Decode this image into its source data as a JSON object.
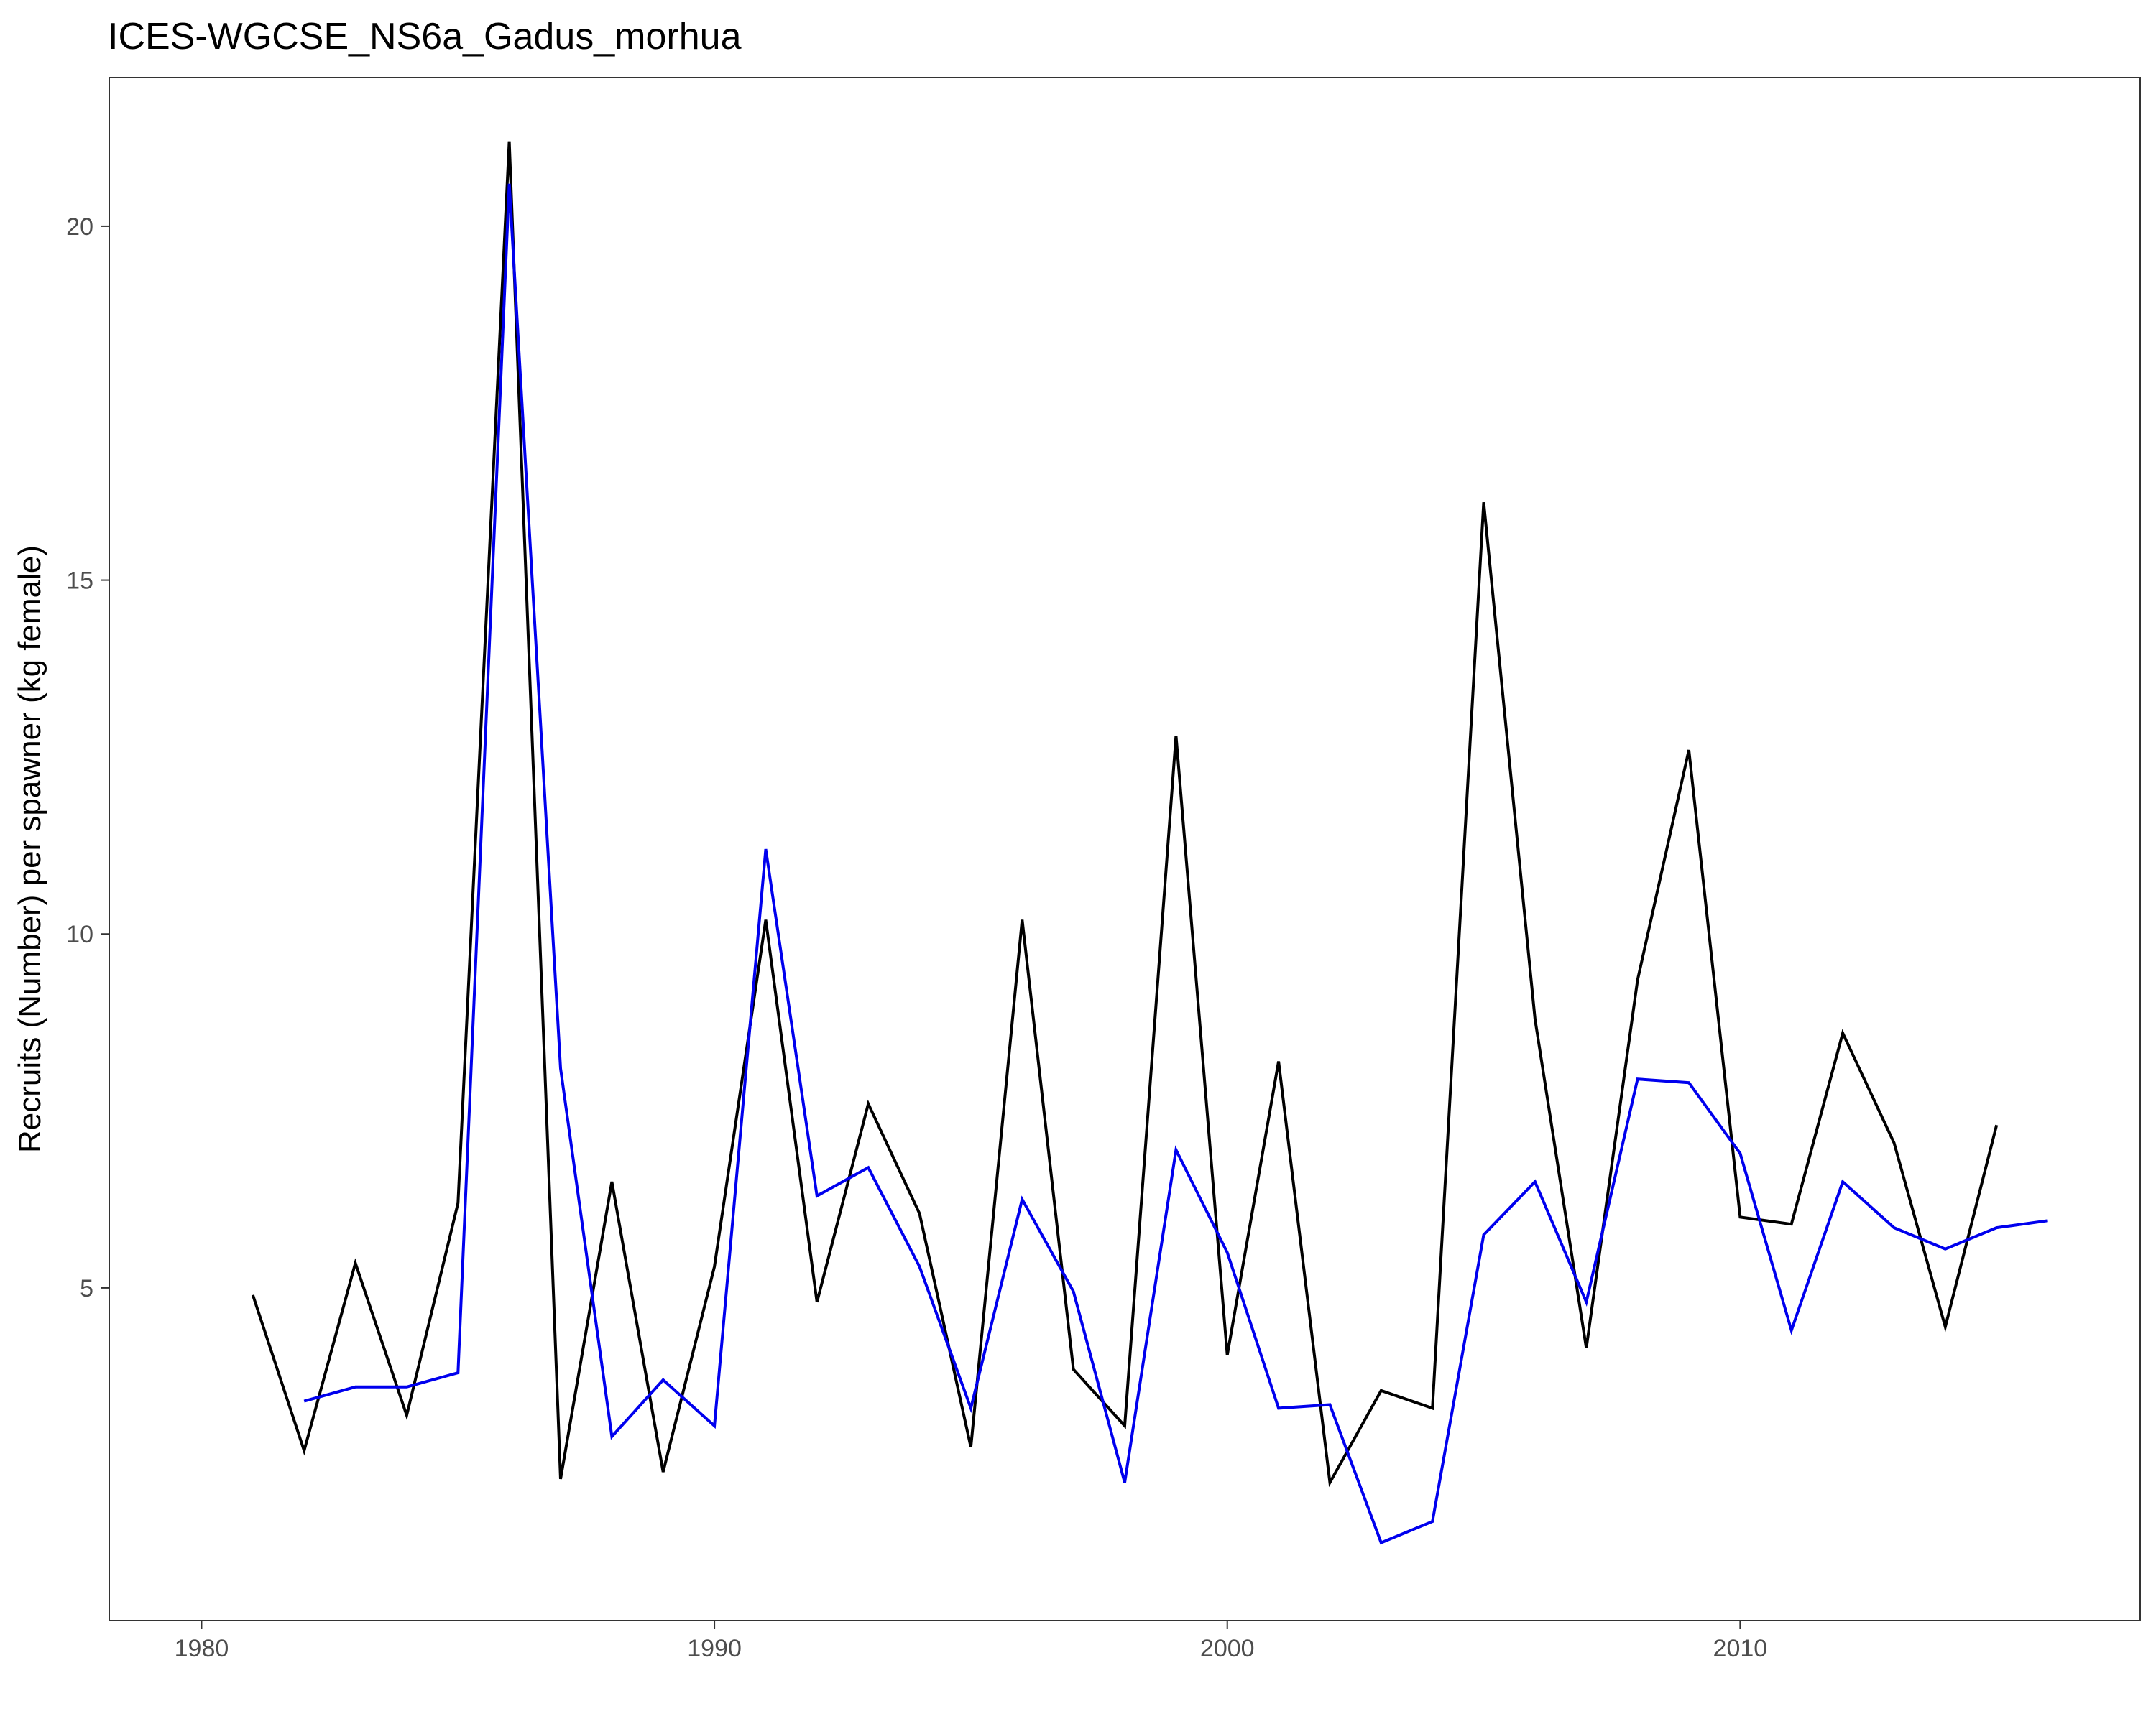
{
  "chart_data": {
    "type": "line",
    "title": "ICES-WGCSE_NS6a_Gadus_morhua",
    "xlabel": "",
    "ylabel": "Recruits (Number) per spawner (kg female)",
    "xlim": [
      1978.2,
      2017.8
    ],
    "ylim": [
      0.3,
      22.1
    ],
    "x_ticks": [
      1980,
      1990,
      2000,
      2010
    ],
    "x_tick_labels": [
      "1980",
      "1990",
      "2000",
      "2010"
    ],
    "y_ticks": [
      5,
      10,
      15,
      20
    ],
    "y_tick_labels": [
      "5",
      "10",
      "15",
      "20"
    ],
    "grid": false,
    "legend": "none",
    "series": [
      {
        "color": "#000000",
        "x": [
          1981,
          1982,
          1983,
          1984,
          1985,
          1986,
          1987,
          1988,
          1989,
          1990,
          1991,
          1992,
          1993,
          1994,
          1995,
          1996,
          1997,
          1998,
          1999,
          2000,
          2001,
          2002,
          2003,
          2004,
          2005,
          2006,
          2007,
          2008,
          2009,
          2010,
          2011,
          2012,
          2013,
          2014,
          2015
        ],
        "values": [
          4.9,
          2.7,
          5.35,
          3.2,
          6.2,
          21.2,
          2.3,
          6.5,
          2.4,
          5.3,
          10.2,
          4.8,
          7.6,
          6.05,
          2.75,
          10.2,
          3.85,
          3.05,
          12.8,
          4.05,
          8.2,
          2.25,
          3.55,
          3.3,
          16.1,
          8.8,
          4.15,
          9.35,
          12.6,
          6.0,
          5.9,
          8.6,
          7.05,
          4.45,
          7.3
        ]
      },
      {
        "color": "#0000ee",
        "x": [
          1982,
          1983,
          1984,
          1985,
          1986,
          1987,
          1988,
          1989,
          1990,
          1991,
          1992,
          1993,
          1994,
          1995,
          1996,
          1997,
          1998,
          1999,
          2000,
          2001,
          2002,
          2003,
          2004,
          2005,
          2006,
          2007,
          2008,
          2009,
          2010,
          2011,
          2012,
          2013,
          2014,
          2015,
          2016
        ],
        "values": [
          3.4,
          3.6,
          3.6,
          3.8,
          20.6,
          8.1,
          2.9,
          3.7,
          3.05,
          11.2,
          6.3,
          6.7,
          5.3,
          3.3,
          6.25,
          4.95,
          2.25,
          6.95,
          5.5,
          3.3,
          3.35,
          1.4,
          1.7,
          5.75,
          6.5,
          4.8,
          7.95,
          7.9,
          6.9,
          4.4,
          6.5,
          5.85,
          5.55,
          5.85,
          5.95
        ]
      }
    ]
  }
}
